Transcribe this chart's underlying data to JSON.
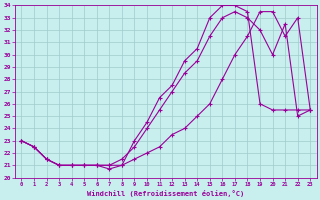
{
  "xlabel": "Windchill (Refroidissement éolien,°C)",
  "xlim": [
    -0.5,
    23.5
  ],
  "ylim": [
    20,
    34
  ],
  "xticks": [
    0,
    1,
    2,
    3,
    4,
    5,
    6,
    7,
    8,
    9,
    10,
    11,
    12,
    13,
    14,
    15,
    16,
    17,
    18,
    19,
    20,
    21,
    22,
    23
  ],
  "yticks": [
    20,
    21,
    22,
    23,
    24,
    25,
    26,
    27,
    28,
    29,
    30,
    31,
    32,
    33,
    34
  ],
  "bg_color": "#c8eeee",
  "line_color": "#990099",
  "grid_color": "#a0cccc",
  "line1_y": [
    23.0,
    22.5,
    21.5,
    21.0,
    21.0,
    21.0,
    21.0,
    20.7,
    21.0,
    23.0,
    24.5,
    26.5,
    27.5,
    29.5,
    30.5,
    33.0,
    34.0,
    34.0,
    33.5,
    26.0,
    25.5,
    25.5,
    25.5,
    25.5
  ],
  "line2_y": [
    23.0,
    22.5,
    21.5,
    21.0,
    21.0,
    21.0,
    21.0,
    21.0,
    21.5,
    22.5,
    24.0,
    25.5,
    27.0,
    28.5,
    29.5,
    31.5,
    33.0,
    33.5,
    33.0,
    32.0,
    30.0,
    32.5,
    25.0,
    25.5
  ],
  "line3_y": [
    23.0,
    22.5,
    21.5,
    21.0,
    21.0,
    21.0,
    21.0,
    21.0,
    21.0,
    21.5,
    22.0,
    22.5,
    23.5,
    24.0,
    25.0,
    26.0,
    28.0,
    30.0,
    31.5,
    33.5,
    33.5,
    31.5,
    33.0,
    25.5
  ]
}
